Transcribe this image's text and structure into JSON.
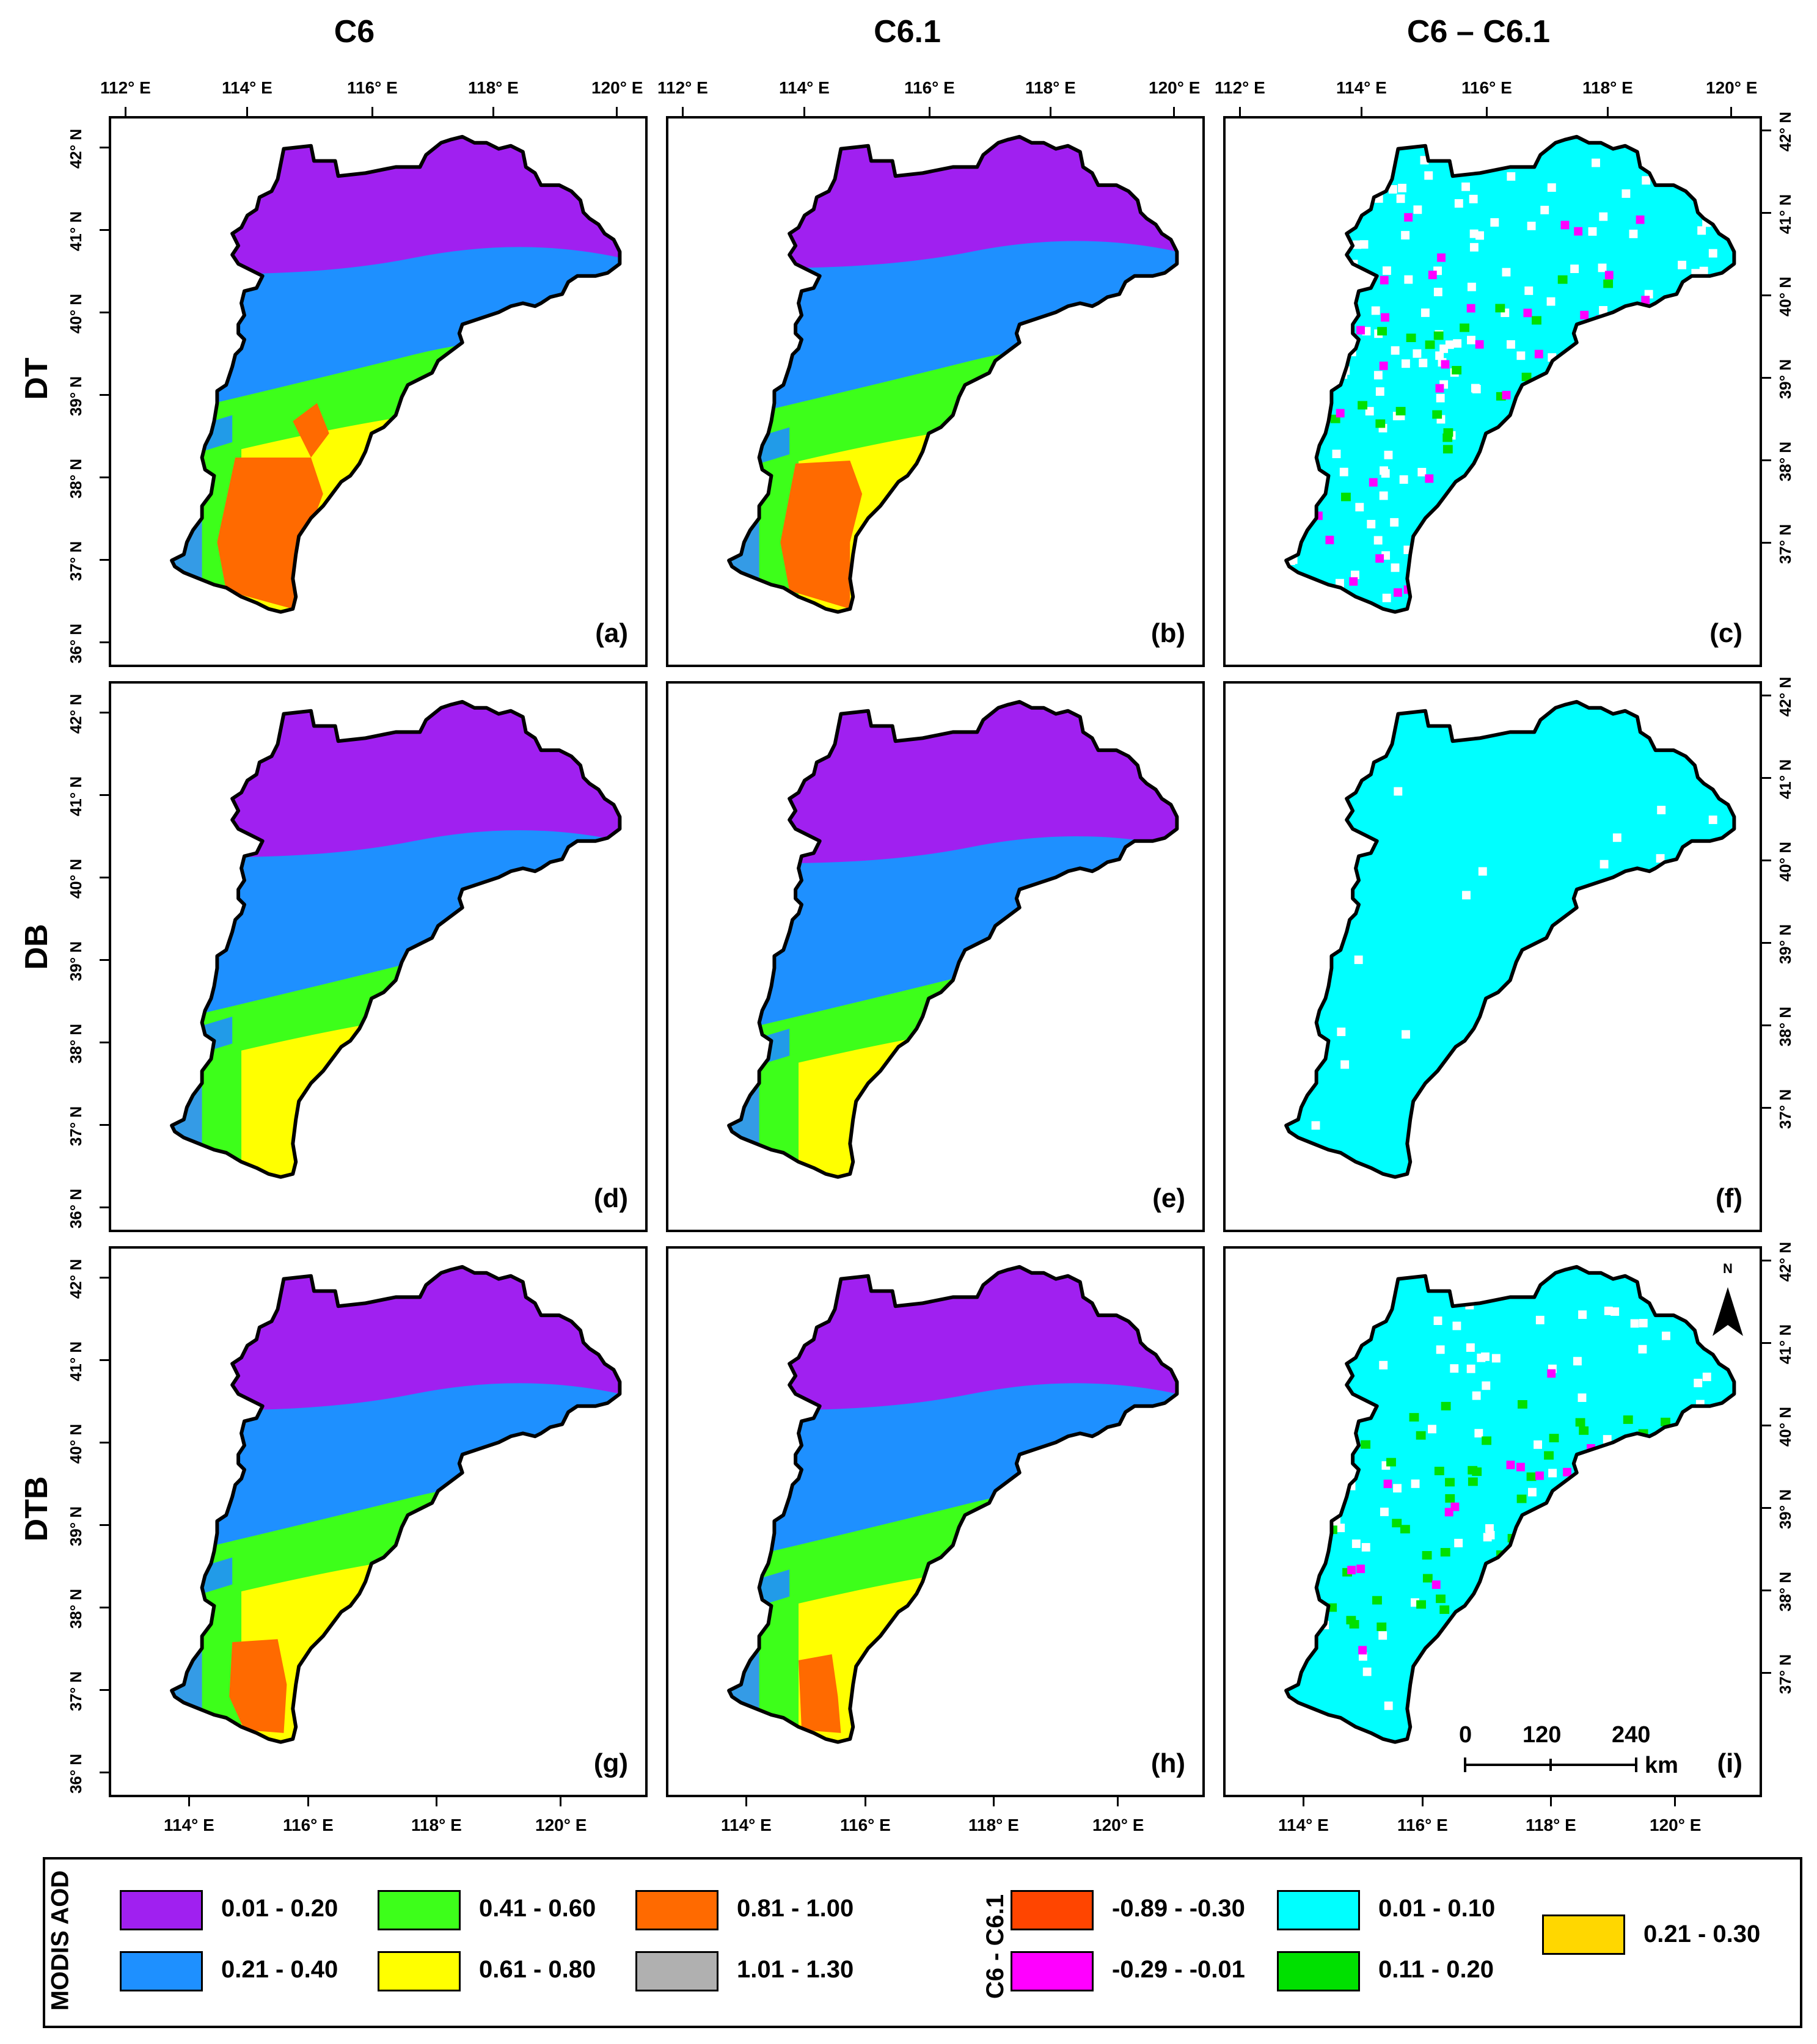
{
  "columns": [
    "C6",
    "C6.1",
    "C6 – C6.1"
  ],
  "rows": [
    "DT",
    "DB",
    "DTB"
  ],
  "panels": [
    "(a)",
    "(b)",
    "(c)",
    "(d)",
    "(e)",
    "(f)",
    "(g)",
    "(h)",
    "(i)"
  ],
  "lon_ticks_top": [
    "112° E",
    "114° E",
    "116° E",
    "118° E",
    "120° E"
  ],
  "lon_ticks_bottom": [
    "114° E",
    "116° E",
    "118° E",
    "120° E"
  ],
  "lat_ticks": [
    "36° N",
    "37° N",
    "38° N",
    "39° N",
    "40° N",
    "41° N",
    "42° N"
  ],
  "north_arrow": {
    "letter": "N",
    "icon": "north-arrow-icon"
  },
  "scale_bar": {
    "labels": [
      "0",
      "120",
      "240"
    ],
    "unit": "km"
  },
  "legend": {
    "aod_title": "MODIS AOD",
    "aod_classes": [
      {
        "label": "0.01 - 0.20",
        "color": "#a020f0"
      },
      {
        "label": "0.21 - 0.40",
        "color": "#1e90ff"
      },
      {
        "label": "0.41 - 0.60",
        "color": "#3dff1a"
      },
      {
        "label": "0.61 - 0.80",
        "color": "#ffff00"
      },
      {
        "label": "0.81 - 1.00",
        "color": "#ff6a00"
      },
      {
        "label": "1.01 - 1.30",
        "color": "#b0b0b0"
      }
    ],
    "diff_title": "C6 - C6.1",
    "diff_classes": [
      {
        "label": "-0.89 - -0.30",
        "color": "#ff4500"
      },
      {
        "label": "-0.29 - -0.01",
        "color": "#ff00ff"
      },
      {
        "label": "0.01 - 0.10",
        "color": "#00ffff"
      },
      {
        "label": "0.11 - 0.20",
        "color": "#00e000"
      },
      {
        "label": "0.21 - 0.30",
        "color": "#ffd700"
      }
    ]
  }
}
